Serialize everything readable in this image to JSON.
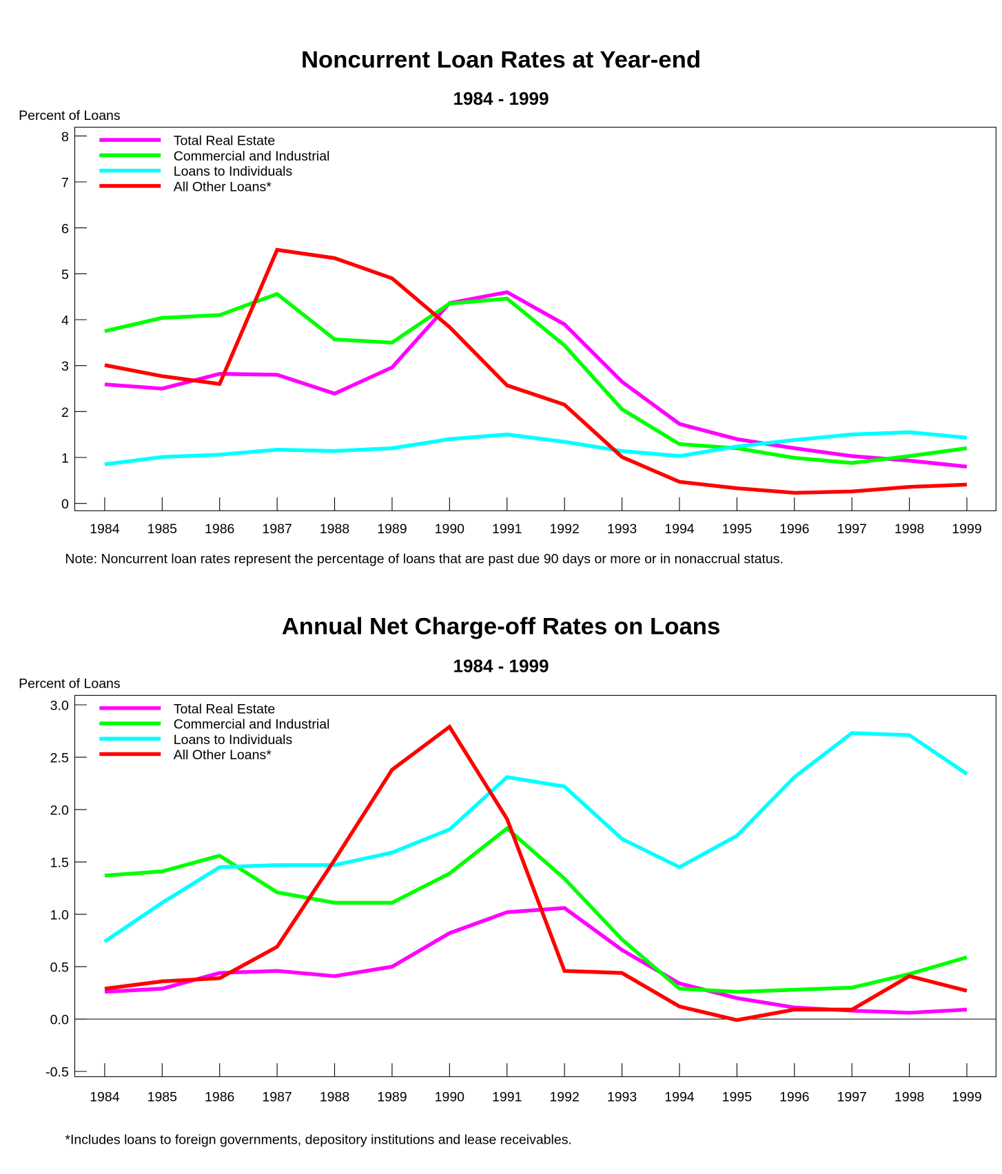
{
  "colors": {
    "tre": "#ff00ff",
    "ci": "#00ff00",
    "ind": "#00ffff",
    "oth": "#ff0000"
  },
  "chart_data": [
    {
      "type": "line",
      "title": "Noncurrent Loan Rates at Year-end",
      "subtitle": "1984 - 1999",
      "ylabel": "Percent of Loans",
      "note": "Note: Noncurrent loan rates represent the percentage of loans that are past due 90 days or more or in nonaccrual status.",
      "ylim": [
        -0.16,
        8.19
      ],
      "yticks": [
        "0",
        "1",
        "2",
        "3",
        "4",
        "5",
        "6",
        "7",
        "8"
      ],
      "ytick_values": [
        0,
        1,
        2,
        3,
        4,
        5,
        6,
        7,
        8
      ],
      "zero_line": false,
      "legend": "top-left",
      "x": [
        "1984",
        "1985",
        "1986",
        "1987",
        "1988",
        "1989",
        "1990",
        "1991",
        "1992",
        "1993",
        "1994",
        "1995",
        "1996",
        "1997",
        "1998",
        "1999"
      ],
      "series": [
        {
          "key": "tre",
          "name": "Total Real Estate",
          "values": [
            2.59,
            2.5,
            2.82,
            2.8,
            2.39,
            2.96,
            4.36,
            4.6,
            3.9,
            2.65,
            1.73,
            1.4,
            1.2,
            1.03,
            0.93,
            0.8
          ]
        },
        {
          "key": "ci",
          "name": "Commercial and Industrial",
          "values": [
            3.75,
            4.04,
            4.1,
            4.56,
            3.57,
            3.5,
            4.35,
            4.46,
            3.44,
            2.05,
            1.29,
            1.2,
            0.99,
            0.88,
            1.03,
            1.2
          ]
        },
        {
          "key": "ind",
          "name": "Loans to Individuals",
          "values": [
            0.85,
            1.01,
            1.06,
            1.17,
            1.14,
            1.2,
            1.4,
            1.5,
            1.34,
            1.14,
            1.03,
            1.24,
            1.38,
            1.5,
            1.55,
            1.43
          ]
        },
        {
          "key": "oth",
          "name": "All Other Loans*",
          "values": [
            3.01,
            2.77,
            2.6,
            5.52,
            5.34,
            4.9,
            3.84,
            2.57,
            2.15,
            1.01,
            0.47,
            0.33,
            0.23,
            0.26,
            0.36,
            0.41
          ]
        }
      ]
    },
    {
      "type": "line",
      "title": "Annual Net Charge-off Rates on Loans",
      "subtitle": "1984 - 1999",
      "ylabel": "Percent of Loans",
      "note": "*Includes loans to foreign governments, depository institutions and lease receivables.",
      "ylim": [
        -0.55,
        3.09
      ],
      "yticks": [
        "-0.5",
        "0.0",
        "0.5",
        "1.0",
        "1.5",
        "2.0",
        "2.5",
        "3.0"
      ],
      "ytick_values": [
        -0.5,
        0,
        0.5,
        1,
        1.5,
        2,
        2.5,
        3
      ],
      "zero_line": true,
      "legend": "top-left",
      "x": [
        "1984",
        "1985",
        "1986",
        "1987",
        "1988",
        "1989",
        "1990",
        "1991",
        "1992",
        "1993",
        "1994",
        "1995",
        "1996",
        "1997",
        "1998",
        "1999"
      ],
      "series": [
        {
          "key": "tre",
          "name": "Total Real Estate",
          "values": [
            0.26,
            0.29,
            0.44,
            0.46,
            0.41,
            0.5,
            0.82,
            1.02,
            1.06,
            0.66,
            0.34,
            0.2,
            0.11,
            0.08,
            0.06,
            0.09
          ]
        },
        {
          "key": "ci",
          "name": "Commercial and Industrial",
          "values": [
            1.37,
            1.41,
            1.56,
            1.21,
            1.11,
            1.11,
            1.39,
            1.82,
            1.34,
            0.76,
            0.29,
            0.26,
            0.28,
            0.3,
            0.43,
            0.59
          ]
        },
        {
          "key": "ind",
          "name": "Loans to Individuals",
          "values": [
            0.74,
            1.11,
            1.45,
            1.47,
            1.47,
            1.59,
            1.81,
            2.31,
            2.22,
            1.72,
            1.45,
            1.75,
            2.31,
            2.73,
            2.71,
            2.34
          ]
        },
        {
          "key": "oth",
          "name": "All Other Loans*",
          "values": [
            0.29,
            0.36,
            0.39,
            0.69,
            1.52,
            2.38,
            2.79,
            1.91,
            0.46,
            0.44,
            0.12,
            -0.01,
            0.09,
            0.09,
            0.41,
            0.27
          ]
        }
      ]
    }
  ]
}
